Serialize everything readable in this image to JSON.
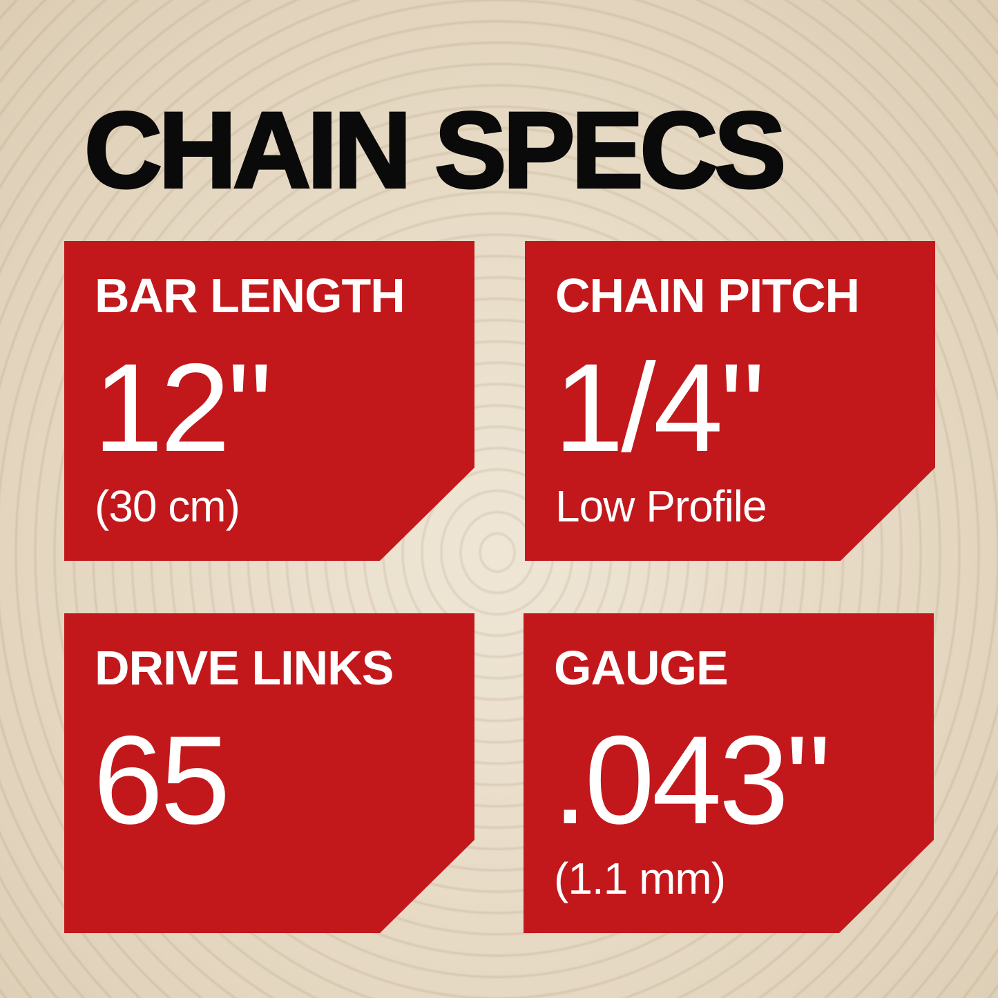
{
  "title": "CHAIN SPECS",
  "colors": {
    "card_red": "#c2181c",
    "title": "#0a0a0a",
    "background_wood": "#e6d9c3"
  },
  "specs": [
    {
      "label": "BAR LENGTH",
      "value": "12\"",
      "sub": "(30 cm)"
    },
    {
      "label": "CHAIN PITCH",
      "value": "1/4\"",
      "sub": "Low Profile"
    },
    {
      "label": "DRIVE LINKS",
      "value": "65",
      "sub": ""
    },
    {
      "label": "GAUGE",
      "value": ".043\"",
      "sub": "(1.1 mm)"
    }
  ]
}
